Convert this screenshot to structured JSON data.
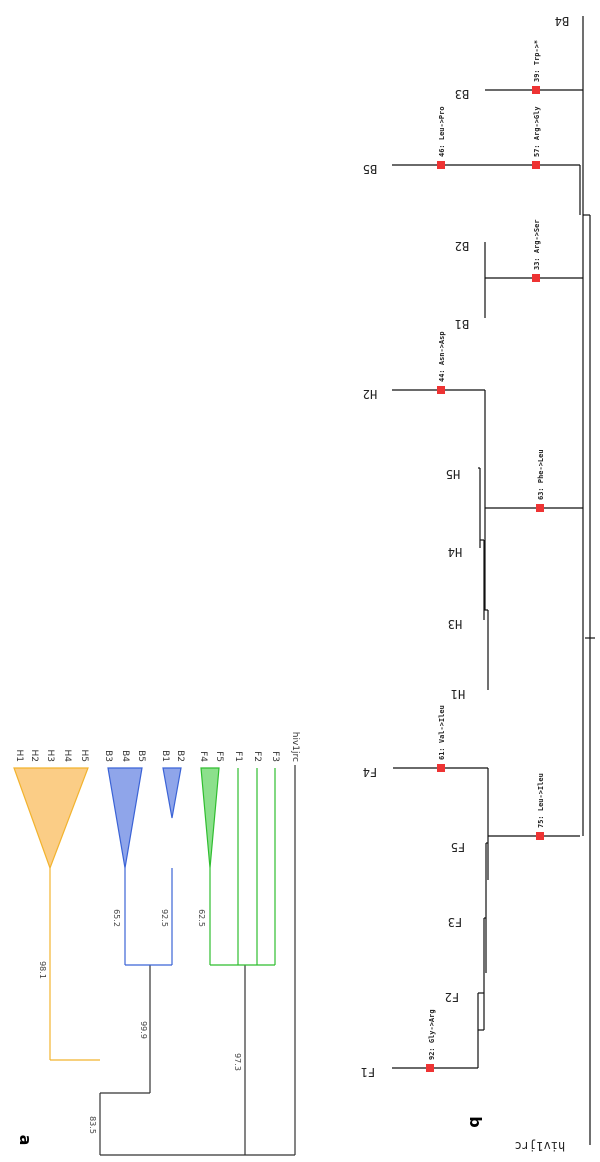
{
  "colors": {
    "H": "#f2b32e",
    "H_fill": "#fbcd86",
    "B": "#3b63d6",
    "B_fill": "#8fa5ea",
    "F": "#2fbd2f",
    "F_fill": "#8ce08c",
    "outgroup": "#333333",
    "mutation": "#ee3333"
  },
  "panel_a": {
    "label": "a",
    "tips": [
      "H1",
      "H2",
      "H3",
      "H4",
      "H5",
      "B3",
      "B4",
      "B5",
      "B1",
      "B2",
      "F4",
      "F5",
      "F1",
      "F2",
      "F3",
      "hiv1jrc"
    ],
    "support": {
      "h_clade": "98.1",
      "b3_b4_b5": "65.2",
      "b1_b2": "92.5",
      "b_clade": "99.9",
      "f4_f5": "62.5",
      "f_clade": "97.3",
      "hb_group": "83.5"
    }
  },
  "panel_b": {
    "label": "b",
    "tips": [
      "F1",
      "F2",
      "F3",
      "F5",
      "F4",
      "H1",
      "H3",
      "H4",
      "H5",
      "H2",
      "B1",
      "B2",
      "B5",
      "B3",
      "B4",
      "hiv1jrc"
    ],
    "mutations": [
      "92: Gly->Arg",
      "75: Leu->Ileu",
      "61: Val->Ileu",
      "63: Phe->Leu",
      "44: Asn->Asp",
      "33: Arg->Ser",
      "46: Leu->Pro",
      "57: Arg->Gly",
      "39: Trp->*"
    ]
  }
}
